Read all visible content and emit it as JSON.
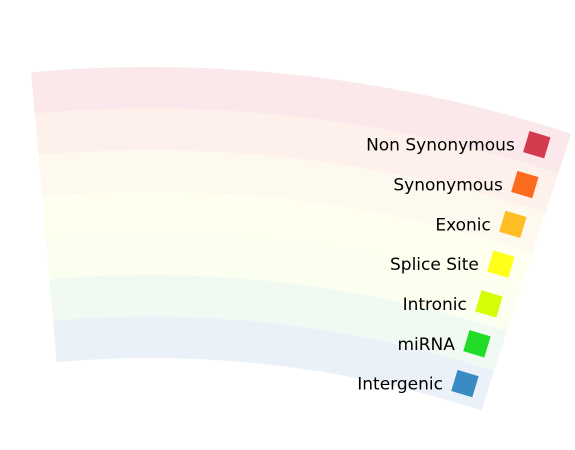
{
  "legend": {
    "items": [
      {
        "key": "non-synonymous",
        "label": "Non Synonymous",
        "color": "#d43b4f",
        "band_color": "#fae8ea"
      },
      {
        "key": "synonymous",
        "label": "Synonymous",
        "color": "#fc6a1d",
        "band_color": "#fef0eb"
      },
      {
        "key": "exonic",
        "label": "Exonic",
        "color": "#fdbd24",
        "band_color": "#fef9ee"
      },
      {
        "key": "splice-site",
        "label": "Splice Site",
        "color": "#ffff1a",
        "band_color": "#fffff0"
      },
      {
        "key": "intronic",
        "label": "Intronic",
        "color": "#d4fd08",
        "band_color": "#fbfff0"
      },
      {
        "key": "mirna",
        "label": "miRNA",
        "color": "#21dc27",
        "band_color": "#f1faf2"
      },
      {
        "key": "intergenic",
        "label": "Intergenic",
        "color": "#3a8bc4",
        "band_color": "#ebf1f8"
      }
    ]
  }
}
